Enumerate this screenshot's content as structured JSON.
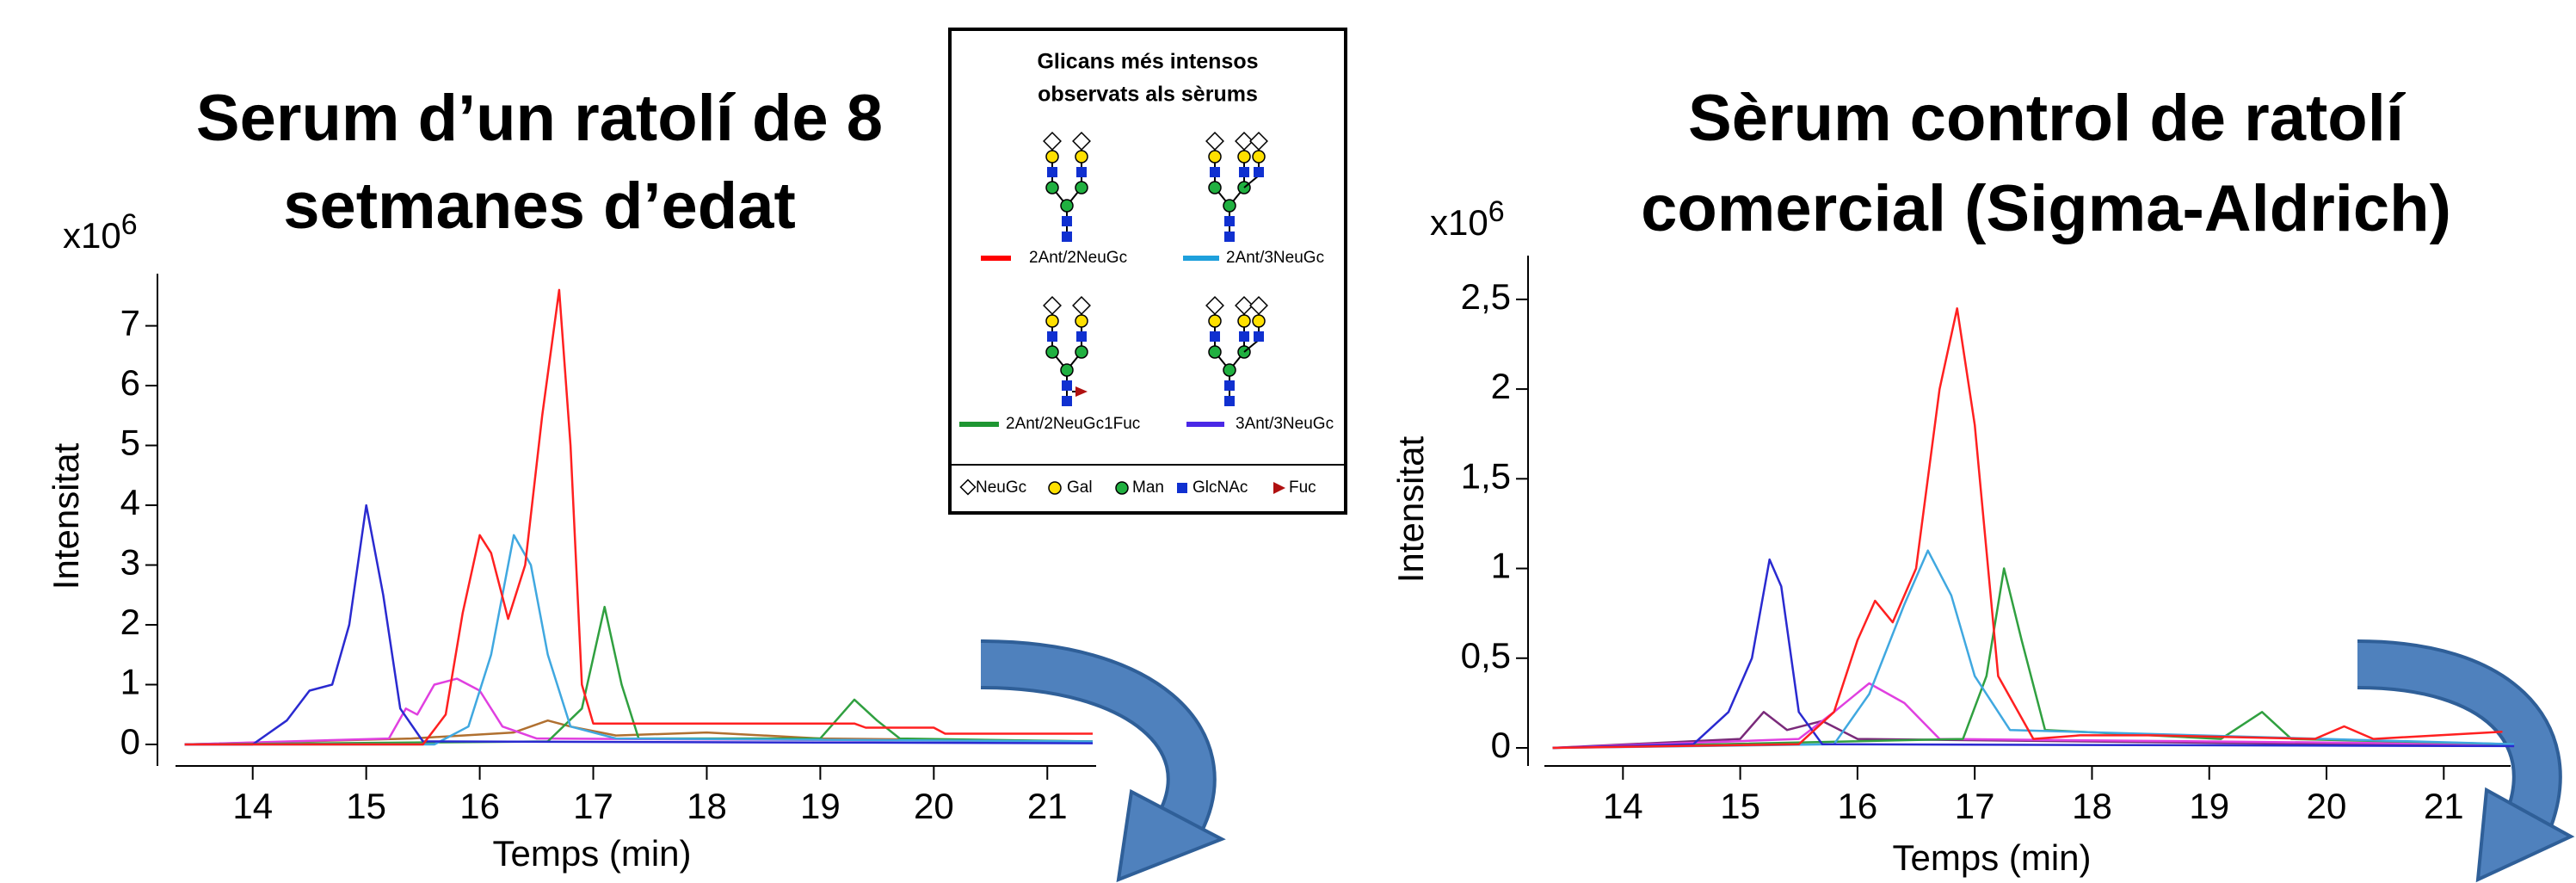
{
  "chart_data": [
    {
      "type": "line",
      "title": [
        "Serum d’un ratolí de 8",
        "setmanes d’edat"
      ],
      "y_multiplier": "x10",
      "y_multiplier_exponent": 6,
      "ylabel": "Intensitat",
      "xlabel": "Temps  (min)",
      "xlim": [
        13.32,
        21.43
      ],
      "ylim": [
        0,
        7.8
      ],
      "xticks": [
        14,
        15,
        16,
        17,
        18,
        19,
        20,
        21
      ],
      "yticks": [
        0,
        1,
        2,
        3,
        4,
        5,
        6,
        7
      ],
      "series": [
        {
          "color": "#b07030",
          "x": [
            13.4,
            15.4,
            16.3,
            16.6,
            16.8,
            17.2,
            18.0,
            19.0,
            21.4
          ],
          "values": [
            0,
            0.1,
            0.2,
            0.4,
            0.3,
            0.15,
            0.2,
            0.1,
            0.05
          ]
        },
        {
          "color": "#e040e0",
          "x": [
            13.4,
            15.2,
            15.35,
            15.45,
            15.6,
            15.8,
            16.0,
            16.2,
            16.5,
            21.4
          ],
          "values": [
            0,
            0.1,
            0.6,
            0.5,
            1.0,
            1.1,
            0.9,
            0.3,
            0.1,
            0.05
          ]
        },
        {
          "color": "#30a040",
          "x": [
            13.4,
            16.6,
            16.9,
            17.1,
            17.25,
            17.4,
            19.0,
            19.3,
            19.5,
            19.7,
            21.4
          ],
          "values": [
            0,
            0.05,
            0.6,
            2.3,
            1.0,
            0.1,
            0.1,
            0.75,
            0.4,
            0.1,
            0.05
          ]
        },
        {
          "color": "#40a8e0",
          "x": [
            13.4,
            15.6,
            15.9,
            16.1,
            16.3,
            16.45,
            16.6,
            16.8,
            17.2,
            21.4
          ],
          "values": [
            0,
            0,
            0.3,
            1.5,
            3.5,
            3.0,
            1.5,
            0.3,
            0.1,
            0.05
          ]
        },
        {
          "color": "#2a2ad0",
          "x": [
            13.4,
            14.0,
            14.3,
            14.5,
            14.7,
            14.85,
            15.0,
            15.15,
            15.3,
            15.5,
            21.4
          ],
          "values": [
            0,
            0,
            0.4,
            0.9,
            1.0,
            2.0,
            4.0,
            2.5,
            0.6,
            0.05,
            0.02
          ]
        },
        {
          "color": "#ff2020",
          "x": [
            13.4,
            15.5,
            15.7,
            15.85,
            16.0,
            16.1,
            16.25,
            16.4,
            16.55,
            16.7,
            16.8,
            16.9,
            17.0,
            18.0,
            19.3,
            19.4,
            20.0,
            20.1,
            21.4
          ],
          "values": [
            0,
            0,
            0.5,
            2.2,
            3.5,
            3.2,
            2.1,
            3.0,
            5.5,
            7.6,
            5.0,
            1.0,
            0.35,
            0.35,
            0.35,
            0.28,
            0.28,
            0.18,
            0.18
          ]
        }
      ]
    },
    {
      "type": "line",
      "title": [
        "Sèrum control de ratolí",
        "comercial (Sigma-Aldrich)"
      ],
      "y_multiplier": "x10",
      "y_multiplier_exponent": 6,
      "ylabel": "Intensitat",
      "xlabel": "Temps  (min)",
      "xlim": [
        13.33,
        21.57
      ],
      "ylim": [
        0,
        2.72
      ],
      "xticks": [
        14,
        15,
        16,
        17,
        18,
        19,
        20,
        21
      ],
      "yticks": [
        0,
        {
          "value": 0.5,
          "label": "0,5"
        },
        1,
        {
          "value": 1.5,
          "label": "1,5"
        },
        2,
        {
          "value": 2.5,
          "label": "2,5"
        }
      ],
      "series": [
        {
          "color": "#7a2a7a",
          "x": [
            13.4,
            15.0,
            15.2,
            15.4,
            15.7,
            16.0,
            21.6
          ],
          "values": [
            0,
            0.05,
            0.2,
            0.1,
            0.15,
            0.05,
            0.01
          ]
        },
        {
          "color": "#e040e0",
          "x": [
            13.4,
            15.5,
            15.8,
            16.1,
            16.4,
            16.7,
            21.6
          ],
          "values": [
            0,
            0.05,
            0.2,
            0.36,
            0.25,
            0.05,
            0.02
          ]
        },
        {
          "color": "#30a040",
          "x": [
            13.4,
            16.9,
            17.1,
            17.25,
            17.4,
            17.6,
            19.1,
            19.45,
            19.7,
            21.6
          ],
          "values": [
            0,
            0.05,
            0.4,
            1.0,
            0.6,
            0.1,
            0.05,
            0.2,
            0.05,
            0.02
          ]
        },
        {
          "color": "#40a8e0",
          "x": [
            13.4,
            15.8,
            16.1,
            16.4,
            16.6,
            16.8,
            17.0,
            17.3,
            21.6
          ],
          "values": [
            0,
            0.02,
            0.3,
            0.8,
            1.1,
            0.85,
            0.4,
            0.1,
            0.02
          ]
        },
        {
          "color": "#2a2ad0",
          "x": [
            13.4,
            14.6,
            14.9,
            15.1,
            15.25,
            15.35,
            15.5,
            15.7,
            21.6
          ],
          "values": [
            0,
            0.02,
            0.2,
            0.5,
            1.05,
            0.9,
            0.2,
            0.02,
            0.01
          ]
        },
        {
          "color": "#ff2020",
          "x": [
            13.4,
            15.5,
            15.8,
            16.0,
            16.15,
            16.3,
            16.5,
            16.7,
            16.85,
            17.0,
            17.2,
            17.5,
            17.9,
            18.5,
            19.9,
            20.15,
            20.4,
            21.5
          ],
          "values": [
            0,
            0.02,
            0.2,
            0.6,
            0.82,
            0.7,
            1.0,
            2.0,
            2.45,
            1.8,
            0.4,
            0.05,
            0.07,
            0.07,
            0.05,
            0.12,
            0.05,
            0.09
          ]
        }
      ]
    }
  ],
  "legend": {
    "title": [
      "Glicans més intensos",
      "observats als sèrums"
    ],
    "entries": [
      {
        "label": "2Ant/2NeuGc",
        "color": "#ff0000"
      },
      {
        "label": "2Ant/3NeuGc",
        "color": "#1ea0dc"
      },
      {
        "label": "2Ant/2NeuGc1Fuc",
        "color": "#1e9632"
      },
      {
        "label": "3Ant/3NeuGc",
        "color": "#4a28e6"
      }
    ],
    "key": [
      "NeuGc",
      "Gal",
      "Man",
      "GlcNAc",
      "Fuc"
    ]
  }
}
